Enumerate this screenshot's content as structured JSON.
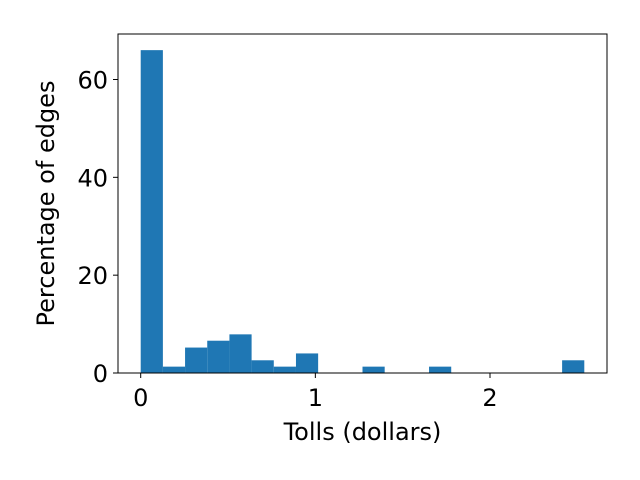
{
  "chart_data": {
    "type": "bar",
    "xlabel": "Tolls (dollars)",
    "ylabel": "Percentage of edges",
    "xlim": [
      -0.13,
      2.67
    ],
    "ylim": [
      0,
      69.3
    ],
    "xticks": [
      0,
      1,
      2
    ],
    "yticks": [
      0,
      20,
      40,
      60
    ],
    "bar_color": "#1f77b4",
    "bin_width": 0.127,
    "bins": [
      {
        "x0": 0.0,
        "value": 66.0
      },
      {
        "x0": 0.127,
        "value": 1.3
      },
      {
        "x0": 0.254,
        "value": 5.2
      },
      {
        "x0": 0.381,
        "value": 6.6
      },
      {
        "x0": 0.508,
        "value": 7.9
      },
      {
        "x0": 0.635,
        "value": 2.6
      },
      {
        "x0": 0.762,
        "value": 1.3
      },
      {
        "x0": 0.889,
        "value": 4.0
      },
      {
        "x0": 1.016,
        "value": 0
      },
      {
        "x0": 1.143,
        "value": 0
      },
      {
        "x0": 1.27,
        "value": 1.3
      },
      {
        "x0": 1.397,
        "value": 0
      },
      {
        "x0": 1.524,
        "value": 0
      },
      {
        "x0": 1.651,
        "value": 1.3
      },
      {
        "x0": 1.778,
        "value": 0
      },
      {
        "x0": 1.905,
        "value": 0
      },
      {
        "x0": 2.032,
        "value": 0
      },
      {
        "x0": 2.159,
        "value": 0
      },
      {
        "x0": 2.286,
        "value": 0
      },
      {
        "x0": 2.413,
        "value": 2.6
      }
    ],
    "grid": false,
    "legend": "none"
  }
}
